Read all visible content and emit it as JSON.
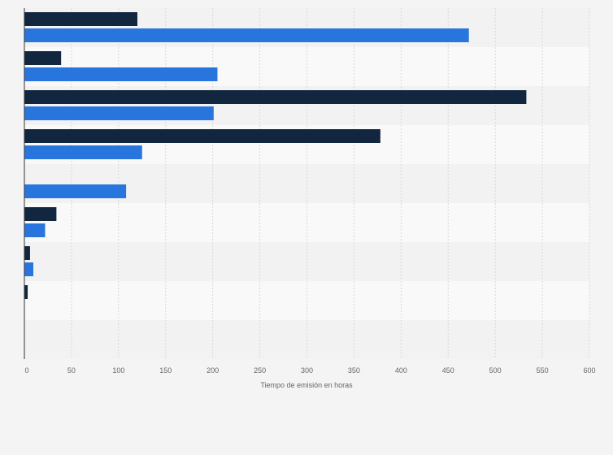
{
  "chart_data": {
    "type": "bar",
    "orientation": "horizontal",
    "title": "",
    "xlabel": "Tiempo de emisión en horas",
    "ylabel": "",
    "xlim": [
      0,
      600
    ],
    "xticks": [
      0,
      50,
      100,
      150,
      200,
      250,
      300,
      350,
      400,
      450,
      500,
      550,
      600
    ],
    "grid": true,
    "legend": "none",
    "categories": [
      "",
      "",
      "",
      "",
      "",
      "",
      "",
      "",
      ""
    ],
    "series": [
      {
        "name": "series-1",
        "color": "#12263f",
        "values": [
          120,
          39,
          533,
          378,
          0,
          34,
          6,
          3.5,
          0
        ]
      },
      {
        "name": "series-2",
        "color": "#2876dd",
        "values": [
          472,
          205,
          201,
          125,
          108,
          22,
          9.5,
          0,
          0
        ]
      }
    ]
  }
}
